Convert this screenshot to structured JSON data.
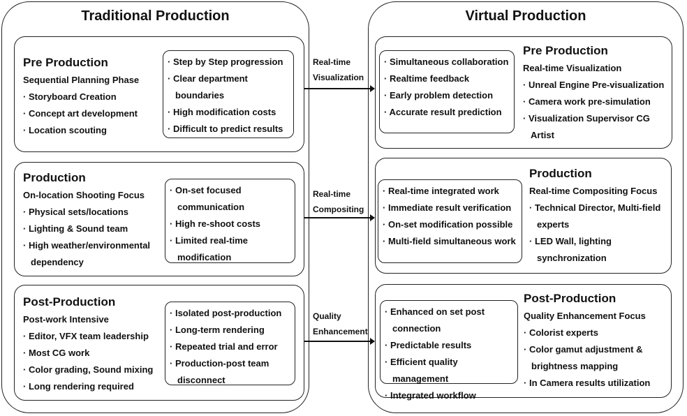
{
  "traditional": {
    "title": "Traditional Production",
    "stages": [
      {
        "title": "Pre Production",
        "focus": "Sequential Planning Phase",
        "items": [
          "Storyboard Creation",
          "Concept art development",
          "Location scouting"
        ],
        "issues": [
          "Step by Step progression",
          "Clear department boundaries",
          "High modification costs",
          "Difficult to predict results"
        ]
      },
      {
        "title": "Production",
        "focus": "On-location Shooting Focus",
        "items": [
          "Physical sets/locations",
          "Lighting & Sound team",
          "High weather/environmental dependency"
        ],
        "issues": [
          "On-set focused communication",
          "High re-shoot costs",
          "Limited real-time modification"
        ]
      },
      {
        "title": "Post-Production",
        "focus": "Post-work Intensive",
        "items": [
          "Editor, VFX team leadership",
          "Most CG work",
          "Color grading, Sound mixing",
          "Long rendering required"
        ],
        "issues": [
          "Isolated post-production",
          "Long-term rendering",
          "Repeated trial and error",
          "Production-post team disconnect"
        ]
      }
    ]
  },
  "virtual": {
    "title": "Virtual Production",
    "stages": [
      {
        "title": "Pre Production",
        "focus": "Real-time Visualization",
        "items": [
          "Unreal Engine Pre-visualization",
          "Camera work pre-simulation",
          "Visualization Supervisor CG Artist"
        ],
        "benefits": [
          "Simultaneous collaboration",
          "Realtime feedback",
          "Early problem detection",
          "Accurate result prediction"
        ]
      },
      {
        "title": "Production",
        "focus": "Real-time Compositing  Focus",
        "items": [
          "Technical Director, Multi-field experts",
          "LED Wall, lighting synchronization"
        ],
        "benefits": [
          "Real-time integrated work",
          "Immediate result verification",
          "On-set modification possible",
          "Multi-field simultaneous work"
        ]
      },
      {
        "title": "Post-Production",
        "focus": "Quality Enhancement Focus",
        "items": [
          "Colorist experts",
          "Color gamut adjustment & brightness mapping",
          "In Camera results utilization"
        ],
        "benefits": [
          "Enhanced on set post connection",
          "Predictable results",
          "Efficient quality management",
          "Integrated workflow"
        ]
      }
    ]
  },
  "transitions": [
    {
      "line1": "Real-time",
      "line2": "Visualization"
    },
    {
      "line1": "Real-time",
      "line2": "Compositing"
    },
    {
      "line1": "Quality",
      "line2": "Enhancement"
    }
  ]
}
